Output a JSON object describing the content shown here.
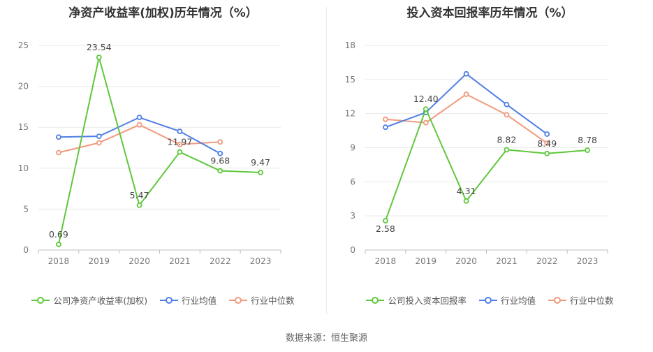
{
  "footer": "数据来源：恒生聚源",
  "colors": {
    "company": "#5ec83b",
    "avg": "#4f7fe6",
    "median": "#f09a7e"
  },
  "chart_data": [
    {
      "type": "line",
      "title": "净资产收益率(加权)历年情况（%）",
      "x": [
        "2018",
        "2019",
        "2020",
        "2021",
        "2022",
        "2023"
      ],
      "ylim": [
        0,
        25
      ],
      "yticks": [
        "0",
        "5",
        "10",
        "15",
        "20",
        "25"
      ],
      "grid": true,
      "legend_position": "bottom",
      "series": [
        {
          "name": "公司净资产收益率(加权)",
          "values": [
            0.69,
            23.54,
            5.47,
            11.97,
            9.68,
            9.47
          ],
          "labels": [
            "0.69",
            "23.54",
            "5.47",
            "11.97",
            "9.68",
            "9.47"
          ]
        },
        {
          "name": "行业均值",
          "values": [
            13.8,
            13.9,
            16.2,
            14.5,
            11.8,
            null
          ]
        },
        {
          "name": "行业中位数",
          "values": [
            11.9,
            13.1,
            15.3,
            12.9,
            13.2,
            null
          ]
        }
      ]
    },
    {
      "type": "line",
      "title": "投入资本回报率历年情况（%）",
      "x": [
        "2018",
        "2019",
        "2020",
        "2021",
        "2022",
        "2023"
      ],
      "ylim": [
        0,
        18
      ],
      "yticks": [
        "0",
        "3",
        "6",
        "9",
        "12",
        "15",
        "18"
      ],
      "grid": true,
      "legend_position": "bottom",
      "series": [
        {
          "name": "公司投入资本回报率",
          "values": [
            2.58,
            12.4,
            4.31,
            8.82,
            8.49,
            8.78
          ],
          "labels": [
            "2.58",
            "12.40",
            "4.31",
            "8.82",
            "8.49",
            "8.78"
          ]
        },
        {
          "name": "行业均值",
          "values": [
            10.8,
            12.1,
            15.5,
            12.8,
            10.2,
            null
          ]
        },
        {
          "name": "行业中位数",
          "values": [
            11.5,
            11.2,
            13.7,
            11.9,
            9.4,
            null
          ]
        }
      ]
    }
  ]
}
